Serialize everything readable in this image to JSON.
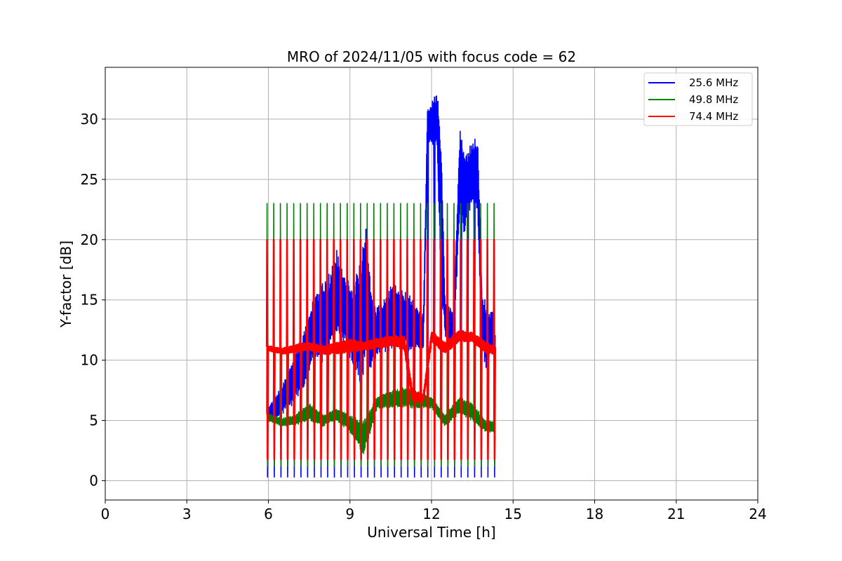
{
  "chart_data": {
    "type": "line",
    "title": "MRO of 2024/11/05 with focus code = 62",
    "xlabel": "Universal Time [h]",
    "ylabel": "Y-factor [dB]",
    "xlim": [
      0,
      24
    ],
    "ylim": [
      -1.6,
      34.3
    ],
    "xticks": [
      0,
      3,
      6,
      9,
      12,
      15,
      18,
      21,
      24
    ],
    "yticks": [
      0,
      5,
      10,
      15,
      20,
      25,
      30
    ],
    "grid": true,
    "legend_position": "top-right",
    "calibration": {
      "start": 5.95,
      "end": 14.3,
      "count": 35
    },
    "series": [
      {
        "name": "25.6 MHz",
        "color": "#0000ff",
        "calibration_low": 0.3,
        "calibration_high": 20,
        "envelope": [
          [
            5.95,
            5.4,
            6.0
          ],
          [
            6.2,
            5.0,
            6.8
          ],
          [
            6.5,
            5.5,
            8.0
          ],
          [
            6.8,
            6.0,
            9.5
          ],
          [
            7.0,
            6.5,
            11.0
          ],
          [
            7.3,
            7.5,
            12.5
          ],
          [
            7.5,
            9.0,
            14.0
          ],
          [
            7.7,
            10.0,
            15.5
          ],
          [
            8.0,
            9.5,
            16.5
          ],
          [
            8.3,
            11.0,
            17.5
          ],
          [
            8.5,
            11.5,
            19.5
          ],
          [
            8.8,
            11.5,
            17.0
          ],
          [
            9.0,
            10.0,
            16.5
          ],
          [
            9.2,
            9.0,
            17.0
          ],
          [
            9.4,
            7.0,
            19.5
          ],
          [
            9.6,
            9.5,
            21.5
          ],
          [
            9.8,
            9.0,
            15.5
          ],
          [
            10.0,
            10.0,
            14.5
          ],
          [
            10.3,
            10.5,
            15.5
          ],
          [
            10.6,
            11.0,
            16.5
          ],
          [
            10.9,
            11.0,
            16.0
          ],
          [
            11.2,
            10.5,
            15.5
          ],
          [
            11.5,
            11.0,
            14.5
          ],
          [
            11.7,
            10.5,
            14.0
          ],
          [
            11.85,
            27.0,
            31.0
          ],
          [
            12.0,
            28.0,
            31.5
          ],
          [
            12.2,
            27.5,
            32.5
          ],
          [
            12.35,
            14.5,
            30.0
          ],
          [
            12.5,
            12.0,
            15.0
          ],
          [
            12.8,
            11.0,
            14.0
          ],
          [
            13.05,
            22.0,
            29.5
          ],
          [
            13.2,
            20.0,
            28.0
          ],
          [
            13.35,
            22.0,
            27.5
          ],
          [
            13.5,
            23.0,
            28.5
          ],
          [
            13.7,
            22.0,
            28.5
          ],
          [
            13.85,
            11.0,
            16.0
          ],
          [
            14.0,
            9.0,
            15.0
          ],
          [
            14.15,
            10.0,
            14.0
          ],
          [
            14.3,
            10.5,
            14.5
          ]
        ]
      },
      {
        "name": "49.8 MHz",
        "color": "#008000",
        "calibration_low": 1.2,
        "calibration_high": 23,
        "envelope": [
          [
            5.95,
            5.0,
            5.6
          ],
          [
            6.5,
            4.5,
            5.2
          ],
          [
            7.0,
            4.6,
            5.5
          ],
          [
            7.5,
            5.0,
            6.5
          ],
          [
            8.0,
            4.5,
            5.5
          ],
          [
            8.5,
            5.0,
            6.0
          ],
          [
            9.0,
            4.0,
            5.5
          ],
          [
            9.5,
            2.0,
            5.0
          ],
          [
            10.0,
            6.0,
            7.0
          ],
          [
            10.5,
            6.0,
            7.5
          ],
          [
            11.0,
            6.0,
            7.8
          ],
          [
            11.5,
            6.0,
            7.5
          ],
          [
            12.0,
            6.0,
            7.0
          ],
          [
            12.5,
            4.5,
            5.5
          ],
          [
            13.0,
            5.5,
            7.0
          ],
          [
            13.5,
            5.0,
            6.5
          ],
          [
            14.0,
            4.0,
            5.0
          ],
          [
            14.3,
            4.0,
            5.0
          ]
        ]
      },
      {
        "name": "74.4 MHz",
        "color": "#ff0000",
        "calibration_low": 1.8,
        "calibration_high": 20,
        "envelope": [
          [
            5.95,
            10.8,
            11.2
          ],
          [
            6.5,
            10.5,
            11.0
          ],
          [
            7.0,
            10.6,
            11.3
          ],
          [
            7.5,
            10.8,
            11.5
          ],
          [
            8.0,
            10.5,
            11.2
          ],
          [
            8.5,
            10.5,
            11.5
          ],
          [
            9.0,
            10.6,
            11.8
          ],
          [
            9.5,
            10.8,
            11.5
          ],
          [
            10.0,
            11.0,
            11.8
          ],
          [
            10.5,
            11.2,
            12.0
          ],
          [
            11.0,
            10.8,
            12.0
          ],
          [
            11.3,
            6.5,
            7.5
          ],
          [
            11.7,
            6.5,
            7.2
          ],
          [
            12.0,
            11.5,
            12.4
          ],
          [
            12.5,
            10.5,
            11.5
          ],
          [
            13.0,
            11.5,
            12.5
          ],
          [
            13.5,
            11.5,
            12.3
          ],
          [
            14.0,
            10.5,
            11.5
          ],
          [
            14.3,
            10.5,
            11.2
          ]
        ]
      }
    ]
  }
}
